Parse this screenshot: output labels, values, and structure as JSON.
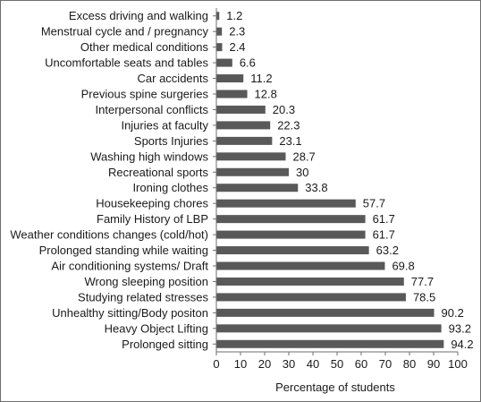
{
  "chart_data": {
    "type": "bar",
    "orientation": "horizontal",
    "title": "",
    "xlabel": "Percentage of students",
    "ylabel": "",
    "xlim": [
      0,
      100
    ],
    "x_ticks": [
      "0",
      "10",
      "20",
      "30",
      "40",
      "50",
      "60",
      "70",
      "80",
      "90",
      "100"
    ],
    "grid": false,
    "bar_color": "#595959",
    "categories": [
      "Excess driving and walking",
      "Menstrual cycle and / pregnancy",
      "Other medical conditions",
      "Uncomfortable seats and tables",
      "Car accidents",
      "Previous spine surgeries",
      "Interpersonal conflicts",
      "Injuries at faculty",
      "Sports Injuries",
      "Washing high windows",
      "Recreational sports",
      "Ironing clothes",
      "Housekeeping chores",
      "Family History of LBP",
      "Weather conditions changes (cold/hot)",
      "Prolonged standing while waiting",
      "Air conditioning systems/ Draft",
      "Wrong sleeping position",
      "Studying related stresses",
      "Unhealthy sitting/Body positon",
      "Heavy Object Lifting",
      "Prolonged sitting"
    ],
    "values": [
      1.2,
      2.3,
      2.4,
      6.6,
      11.2,
      12.8,
      20.3,
      22.3,
      23.1,
      28.7,
      30,
      33.8,
      57.7,
      61.7,
      61.7,
      63.2,
      69.8,
      77.7,
      78.5,
      90.2,
      93.2,
      94.2
    ],
    "value_labels": [
      "1.2",
      "2.3",
      "2.4",
      "6.6",
      "11.2",
      "12.8",
      "20.3",
      "22.3",
      "23.1",
      "28.7",
      "30",
      "33.8",
      "57.7",
      "61.7",
      "61.7",
      "63.2",
      "69.8",
      "77.7",
      "78.5",
      "90.2",
      "93.2",
      "94.2"
    ]
  }
}
